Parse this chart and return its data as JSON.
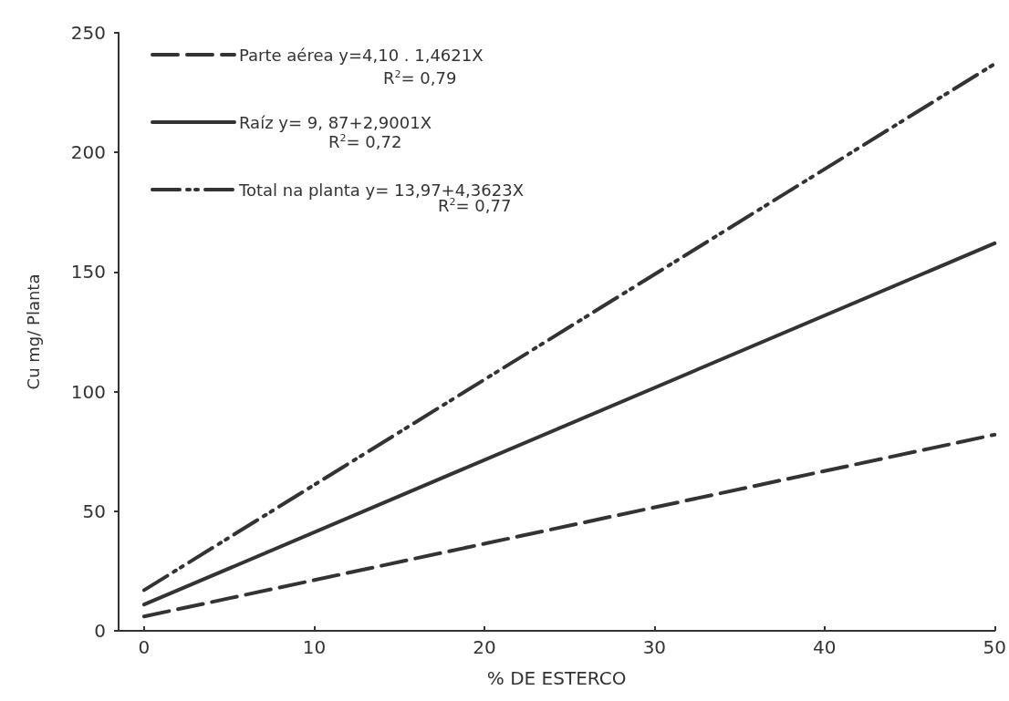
{
  "chart_data": {
    "type": "line",
    "xlabel": "% DE ESTERCO",
    "ylabel": "Cu mg/ Planta",
    "x": [
      0,
      50
    ],
    "series": [
      {
        "name": "Parte aérea y=4,10 . 1,4621X",
        "color": "#333333",
        "values": [
          6,
          82
        ],
        "line_style": "dashed"
      },
      {
        "name": "Raíz y= 9, 87+2,9001X",
        "color": "#333333",
        "values": [
          11,
          162
        ],
        "line_style": "solid"
      },
      {
        "name": "Total na planta y= 13,97+4,3623X",
        "color": "#333333",
        "values": [
          17,
          237
        ],
        "line_style": "dashdotdot"
      }
    ],
    "annotations": [
      "R$^{2}$= 0,79",
      "R$^{2}$= 0,72",
      "R$^{2}$= 0,77"
    ],
    "xlim": [
      -1.5,
      50
    ],
    "xticks": [
      0,
      10,
      20,
      30,
      40,
      50
    ],
    "ylim": [
      0,
      250
    ],
    "yticks": [
      0,
      50,
      100,
      150,
      200,
      250
    ],
    "grid": false,
    "legend": "top left",
    "marker": "none"
  }
}
